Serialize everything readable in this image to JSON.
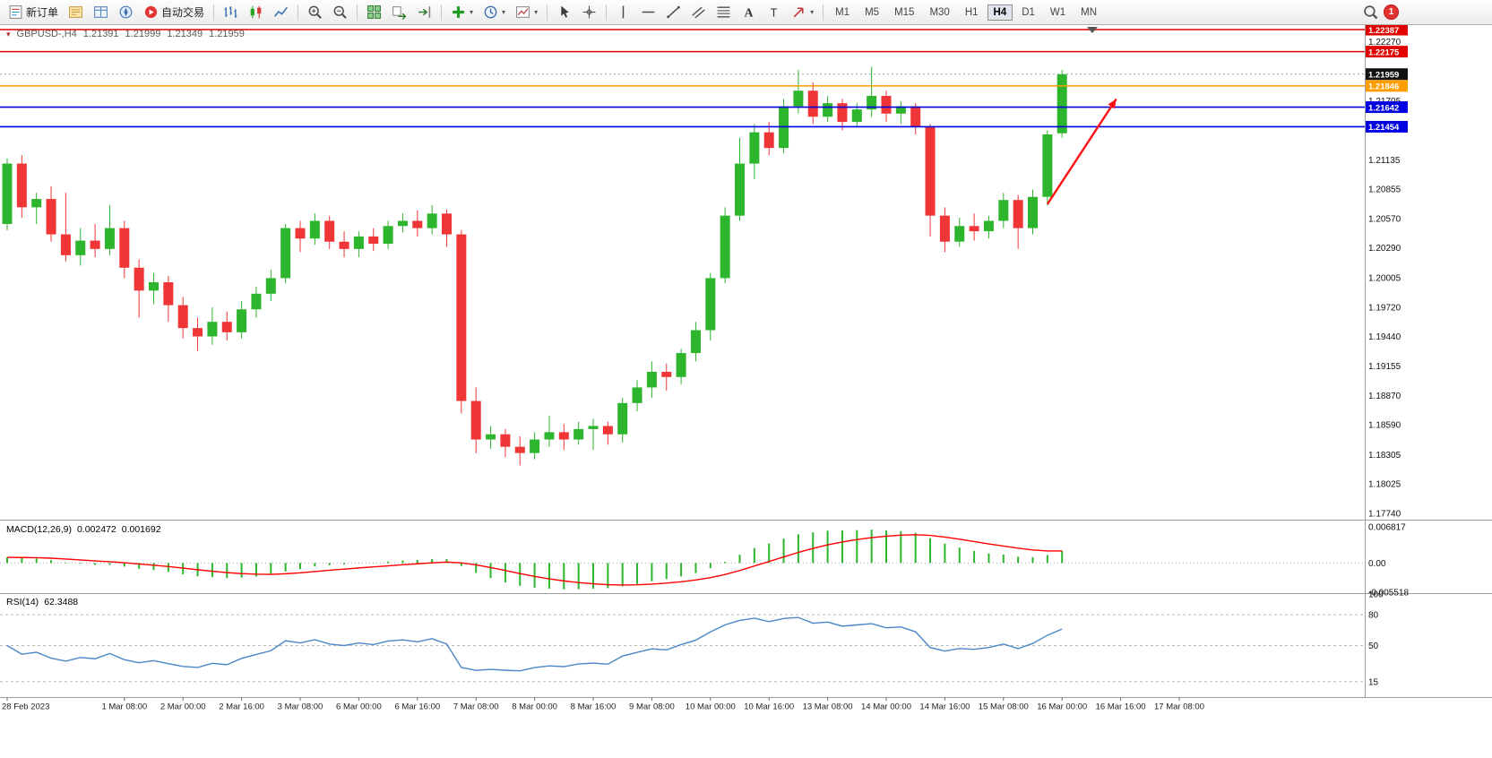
{
  "toolbar": {
    "timeframes": [
      "M1",
      "M5",
      "M15",
      "M30",
      "H1",
      "H4",
      "D1",
      "W1",
      "MN"
    ],
    "active_timeframe": "H4",
    "notification_count": "1",
    "items": [
      {
        "name": "new-order-button",
        "icon": "order-ticket-icon",
        "label": "新订单"
      },
      {
        "name": "market-watch-button",
        "icon": "market-watch-icon"
      },
      {
        "name": "data-window-button",
        "icon": "data-window-icon"
      },
      {
        "name": "navigator-button",
        "icon": "navigator-icon"
      },
      {
        "name": "autotrading-button",
        "icon": "autotrading-icon",
        "label": "自动交易"
      },
      {
        "type": "sep"
      },
      {
        "name": "bar-chart-button",
        "icon": "bar-chart-icon"
      },
      {
        "name": "candlestick-chart-button",
        "icon": "candlestick-chart-icon"
      },
      {
        "name": "line-chart-button",
        "icon": "line-chart-icon"
      },
      {
        "type": "sep"
      },
      {
        "name": "zoom-in-button",
        "icon": "zoom-in-icon"
      },
      {
        "name": "zoom-out-button",
        "icon": "zoom-out-icon"
      },
      {
        "type": "sep"
      },
      {
        "name": "tile-windows-button",
        "icon": "tile-windows-icon"
      },
      {
        "name": "auto-scroll-button",
        "icon": "auto-scroll-icon"
      },
      {
        "name": "chart-shift-button",
        "icon": "chart-shift-icon"
      },
      {
        "type": "sep"
      },
      {
        "name": "indicators-button",
        "icon": "indicators-icon",
        "caret": true
      },
      {
        "name": "periods-button",
        "icon": "periods-icon",
        "caret": true
      },
      {
        "name": "templates-button",
        "icon": "templates-icon",
        "caret": true
      },
      {
        "type": "sep"
      },
      {
        "name": "cursor-button",
        "icon": "cursor-icon"
      },
      {
        "name": "crosshair-button",
        "icon": "crosshair-icon"
      },
      {
        "type": "sep"
      },
      {
        "name": "vertical-line-button",
        "icon": "vertical-line-icon"
      },
      {
        "name": "horizontal-line-button",
        "icon": "horizontal-line-icon"
      },
      {
        "name": "trendline-button",
        "icon": "trendline-icon"
      },
      {
        "name": "channel-button",
        "icon": "channel-icon"
      },
      {
        "name": "fibonacci-button",
        "icon": "fibonacci-icon"
      },
      {
        "name": "text-button",
        "icon": "text-icon"
      },
      {
        "name": "label-button",
        "icon": "label-icon"
      },
      {
        "name": "arrows-button",
        "icon": "arrow-style-icon",
        "caret": true
      },
      {
        "type": "sep"
      },
      {
        "type": "timeframes"
      },
      {
        "type": "spacer"
      },
      {
        "name": "search-button",
        "icon": "search-icon"
      },
      {
        "type": "badge"
      }
    ]
  },
  "chart": {
    "symbol_period": "GBPUSD-,H4",
    "open": "1.21391",
    "high": "1.21999",
    "low": "1.21349",
    "close": "1.21959"
  },
  "macd": {
    "label": "MACD(12,26,9)",
    "value": "0.002472",
    "signal_value": "0.001692",
    "axis_labels": [
      "0.006817",
      "0.00",
      "-0.005518"
    ]
  },
  "rsi": {
    "label": "RSI(14)",
    "value": "62.3488",
    "axis_labels": [
      "100",
      "80",
      "50",
      "15"
    ],
    "levels": [
      80,
      50,
      15
    ]
  },
  "chart_data": {
    "type": "candlestick",
    "symbol": "GBPUSD-",
    "timeframe": "H4",
    "y_range": {
      "min": 1.1768,
      "max": 1.2243
    },
    "price_axis_ticks": [
      "1.22270",
      "1.21705",
      "1.21135",
      "1.20855",
      "1.20570",
      "1.20290",
      "1.20005",
      "1.19720",
      "1.19440",
      "1.19155",
      "1.18870",
      "1.18590",
      "1.18305",
      "1.18025",
      "1.17740"
    ],
    "price_lines": [
      {
        "label": "1.22387",
        "price": 1.22387,
        "color": "#e00000",
        "kind": "horizontal-line"
      },
      {
        "label": "1.22175",
        "price": 1.22175,
        "color": "#e00000",
        "kind": "horizontal-line"
      },
      {
        "label": "1.21959",
        "price": 1.21959,
        "color": "#111111",
        "kind": "current-price"
      },
      {
        "label": "1.21846",
        "price": 1.21846,
        "color": "#ff9c00",
        "kind": "horizontal-line"
      },
      {
        "label": "1.21642",
        "price": 1.21642,
        "color": "#0000e0",
        "kind": "horizontal-line"
      },
      {
        "label": "1.21454",
        "price": 1.21454,
        "color": "#0000e0",
        "kind": "horizontal-line"
      }
    ],
    "time_labels": [
      {
        "bar": 0,
        "label": "28 Feb 2023"
      },
      {
        "bar": 8,
        "label": "1 Mar 08:00"
      },
      {
        "bar": 12,
        "label": "2 Mar 00:00"
      },
      {
        "bar": 16,
        "label": "2 Mar 16:00"
      },
      {
        "bar": 20,
        "label": "3 Mar 08:00"
      },
      {
        "bar": 24,
        "label": "6 Mar 00:00"
      },
      {
        "bar": 28,
        "label": "6 Mar 16:00"
      },
      {
        "bar": 32,
        "label": "7 Mar 08:00"
      },
      {
        "bar": 36,
        "label": "8 Mar 00:00"
      },
      {
        "bar": 40,
        "label": "8 Mar 16:00"
      },
      {
        "bar": 44,
        "label": "9 Mar 08:00"
      },
      {
        "bar": 48,
        "label": "10 Mar 00:00"
      },
      {
        "bar": 52,
        "label": "10 Mar 16:00"
      },
      {
        "bar": 56,
        "label": "13 Mar 08:00"
      },
      {
        "bar": 60,
        "label": "14 Mar 00:00"
      },
      {
        "bar": 64,
        "label": "14 Mar 16:00"
      },
      {
        "bar": 68,
        "label": "15 Mar 08:00"
      },
      {
        "bar": 72,
        "label": "16 Mar 00:00"
      },
      {
        "bar": 76,
        "label": "16 Mar 16:00"
      },
      {
        "bar": 80,
        "label": "17 Mar 08:00"
      }
    ],
    "candles": [
      [
        1.2052,
        1.2115,
        1.2046,
        1.211
      ],
      [
        1.211,
        1.2118,
        1.2058,
        1.2068
      ],
      [
        1.2068,
        1.2082,
        1.2052,
        1.2076
      ],
      [
        1.2076,
        1.2088,
        1.2035,
        1.2042
      ],
      [
        1.2042,
        1.2082,
        1.2016,
        1.2022
      ],
      [
        1.2022,
        1.2048,
        1.2012,
        1.2036
      ],
      [
        1.2036,
        1.2052,
        1.202,
        1.2028
      ],
      [
        1.2028,
        1.207,
        1.2022,
        1.2048
      ],
      [
        1.2048,
        1.2055,
        1.2,
        1.201
      ],
      [
        1.201,
        1.2018,
        1.1962,
        1.1988
      ],
      [
        1.1988,
        1.2005,
        1.1975,
        1.1996
      ],
      [
        1.1996,
        1.2002,
        1.1958,
        1.1974
      ],
      [
        1.1974,
        1.1982,
        1.1942,
        1.1952
      ],
      [
        1.1952,
        1.1962,
        1.193,
        1.1944
      ],
      [
        1.1944,
        1.1972,
        1.1936,
        1.1958
      ],
      [
        1.1958,
        1.1968,
        1.194,
        1.1948
      ],
      [
        1.1948,
        1.1978,
        1.1942,
        1.197
      ],
      [
        1.197,
        1.1992,
        1.1962,
        1.1985
      ],
      [
        1.1985,
        1.2008,
        1.1978,
        1.2
      ],
      [
        1.2,
        1.2052,
        1.1995,
        1.2048
      ],
      [
        1.2048,
        1.2055,
        1.2025,
        1.2038
      ],
      [
        1.2038,
        1.2062,
        1.2032,
        1.2055
      ],
      [
        1.2055,
        1.206,
        1.2028,
        1.2035
      ],
      [
        1.2035,
        1.2045,
        1.202,
        1.2028
      ],
      [
        1.2028,
        1.2045,
        1.202,
        1.204
      ],
      [
        1.204,
        1.2048,
        1.2026,
        1.2033
      ],
      [
        1.2033,
        1.2055,
        1.2028,
        1.205
      ],
      [
        1.205,
        1.2062,
        1.2044,
        1.2055
      ],
      [
        1.2055,
        1.2065,
        1.204,
        1.2048
      ],
      [
        1.2048,
        1.207,
        1.2042,
        1.2062
      ],
      [
        1.2062,
        1.2066,
        1.203,
        1.2042
      ],
      [
        1.2042,
        1.2046,
        1.187,
        1.1882
      ],
      [
        1.1882,
        1.1895,
        1.1832,
        1.1845
      ],
      [
        1.1845,
        1.1858,
        1.1836,
        1.185
      ],
      [
        1.185,
        1.1855,
        1.1828,
        1.1838
      ],
      [
        1.1838,
        1.1848,
        1.182,
        1.1832
      ],
      [
        1.1832,
        1.1852,
        1.1826,
        1.1845
      ],
      [
        1.1845,
        1.1868,
        1.1838,
        1.1852
      ],
      [
        1.1852,
        1.186,
        1.1835,
        1.1845
      ],
      [
        1.1845,
        1.1862,
        1.184,
        1.1855
      ],
      [
        1.1855,
        1.1865,
        1.1835,
        1.1858
      ],
      [
        1.1858,
        1.1862,
        1.184,
        1.185
      ],
      [
        1.185,
        1.1885,
        1.1842,
        1.188
      ],
      [
        1.188,
        1.1902,
        1.1872,
        1.1895
      ],
      [
        1.1895,
        1.192,
        1.1885,
        1.191
      ],
      [
        1.191,
        1.1918,
        1.1892,
        1.1905
      ],
      [
        1.1905,
        1.1932,
        1.1898,
        1.1928
      ],
      [
        1.1928,
        1.1958,
        1.192,
        1.195
      ],
      [
        1.195,
        1.2005,
        1.194,
        1.2
      ],
      [
        1.2,
        1.2068,
        1.1995,
        1.206
      ],
      [
        1.206,
        1.2135,
        1.2055,
        1.211
      ],
      [
        1.211,
        1.2148,
        1.2095,
        1.214
      ],
      [
        1.214,
        1.215,
        1.2118,
        1.2125
      ],
      [
        1.2125,
        1.2172,
        1.212,
        1.2165
      ],
      [
        1.2165,
        1.22,
        1.2158,
        1.218
      ],
      [
        1.218,
        1.2188,
        1.2148,
        1.2155
      ],
      [
        1.2155,
        1.2175,
        1.215,
        1.2168
      ],
      [
        1.2168,
        1.2172,
        1.2142,
        1.215
      ],
      [
        1.215,
        1.2168,
        1.2145,
        1.2162
      ],
      [
        1.2162,
        1.2203,
        1.2155,
        1.2175
      ],
      [
        1.2175,
        1.218,
        1.215,
        1.2158
      ],
      [
        1.2158,
        1.217,
        1.2148,
        1.2165
      ],
      [
        1.2165,
        1.2168,
        1.2138,
        1.2145
      ],
      [
        1.2145,
        1.2148,
        1.204,
        1.206
      ],
      [
        1.206,
        1.2068,
        1.2025,
        1.2035
      ],
      [
        1.2035,
        1.2058,
        1.203,
        1.205
      ],
      [
        1.205,
        1.2062,
        1.2036,
        1.2045
      ],
      [
        1.2045,
        1.206,
        1.2038,
        1.2055
      ],
      [
        1.2055,
        1.2082,
        1.2048,
        1.2075
      ],
      [
        1.2075,
        1.208,
        1.2028,
        1.2048
      ],
      [
        1.2048,
        1.2085,
        1.2042,
        1.2078
      ],
      [
        1.2078,
        1.2142,
        1.207,
        1.2138
      ],
      [
        1.21391,
        1.21999,
        1.21349,
        1.21959
      ]
    ],
    "macd_range": {
      "min": -0.005518,
      "max": 0.006817
    },
    "rsi_range": {
      "min": 0,
      "max": 100
    },
    "colors": {
      "up": "#2db52d",
      "down": "#ef3535",
      "macd_histogram": "#2db52d",
      "macd_signal": "#ff0000",
      "rsi_line": "#4a86c8",
      "background": "#ffffff"
    },
    "arrow": {
      "from_bar": 71,
      "from_price": 1.2071,
      "to_bar": 75.7,
      "to_price": 1.2172,
      "color": "#ff1010"
    }
  }
}
